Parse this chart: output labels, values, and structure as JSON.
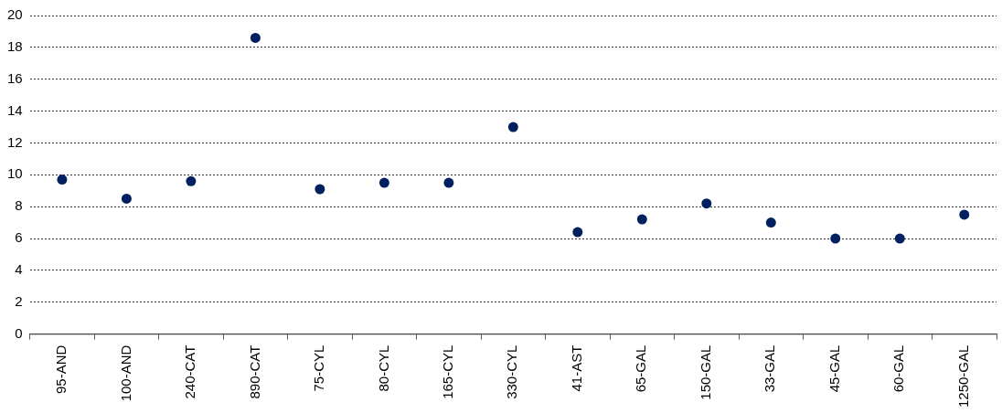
{
  "chart_data": {
    "type": "scatter",
    "categories": [
      "95-AND",
      "100-AND",
      "240-CAT",
      "890-CAT",
      "75-CYL",
      "80-CYL",
      "165-CYL",
      "330-CYL",
      "41-AST",
      "65-GAL",
      "150-GAL",
      "33-GAL",
      "45-GAL",
      "60-GAL",
      "1250-GAL"
    ],
    "series": [
      {
        "color": "#002060",
        "values": [
          9.7,
          8.5,
          9.6,
          18.6,
          9.1,
          9.5,
          9.5,
          13.0,
          6.4,
          7.2,
          8.2,
          7.0,
          6.0,
          6.0,
          7.5
        ]
      }
    ],
    "ylim": [
      0,
      20
    ],
    "yticks": [
      0,
      2,
      4,
      6,
      8,
      10,
      12,
      14,
      16,
      18,
      20
    ],
    "grid": "y",
    "marker": "circle",
    "legend": false
  }
}
